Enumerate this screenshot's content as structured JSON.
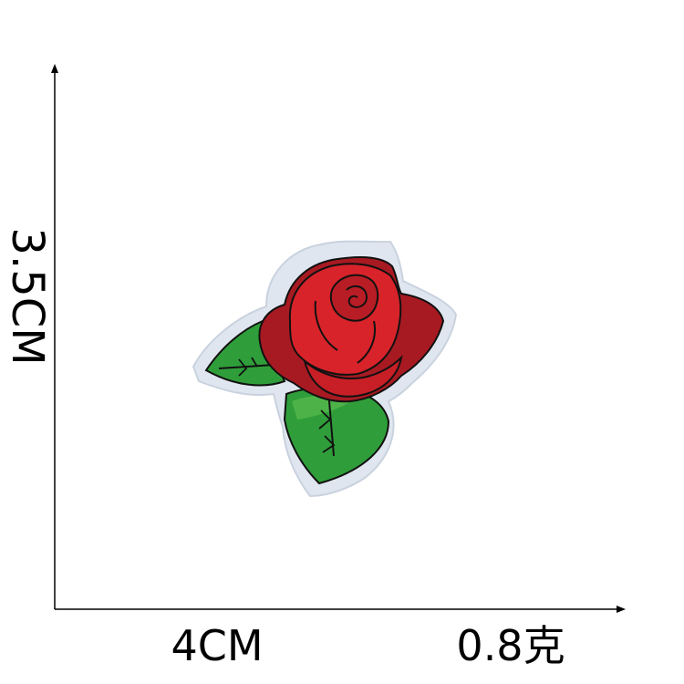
{
  "dimensions": {
    "height": "3.5CM",
    "width": "4CM",
    "weight": "0.8克"
  },
  "product": {
    "subject": "embroidered-rose-patch"
  },
  "colors": {
    "background": "#ffffff",
    "axis": "#000000",
    "felt_backing": "#dfe6ef",
    "petal_red": "#d8232a",
    "petal_dark": "#a81a22",
    "leaf_green": "#2f9e3a",
    "leaf_light": "#55b84c",
    "outline": "#111111"
  }
}
